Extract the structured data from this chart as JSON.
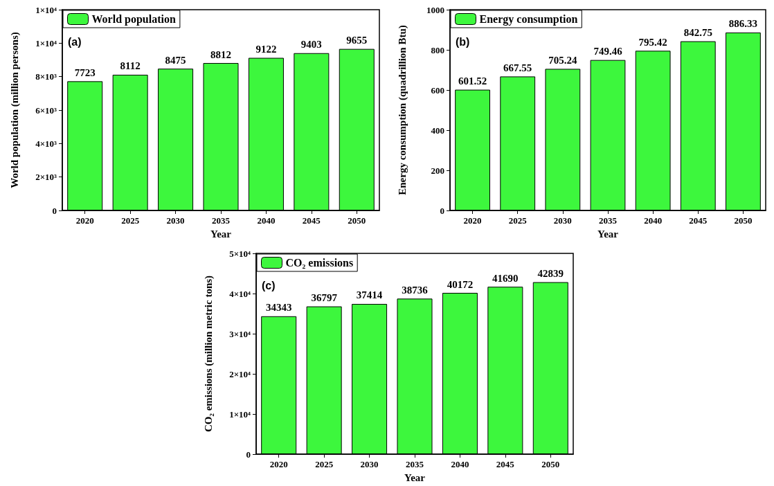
{
  "chart_data": [
    {
      "type": "bar",
      "categories": [
        "2020",
        "2025",
        "2030",
        "2035",
        "2040",
        "2045",
        "2050"
      ],
      "xlabel": "Year",
      "ylabel": "World population (million persons)",
      "annotations": [
        "(a)"
      ],
      "series": [
        {
          "name": "World population",
          "color": "#3df73d",
          "values": [
            7723,
            8112,
            8475,
            8812,
            9122,
            9403,
            9655
          ]
        }
      ],
      "ylim": [
        0,
        12000
      ],
      "yticks": [
        0,
        {
          "value": 2000,
          "label": "2×10³"
        },
        {
          "value": 4000,
          "label": "4×10³"
        },
        {
          "value": 6000,
          "label": "6×10³"
        },
        {
          "value": 8000,
          "label": "8×10³"
        },
        {
          "value": 10000,
          "label": "1×10⁴"
        },
        {
          "value": 12000,
          "label": "1×10⁴"
        }
      ],
      "data_labels": true,
      "legend": "top left",
      "grid": false
    },
    {
      "type": "bar",
      "categories": [
        "2020",
        "2025",
        "2030",
        "2035",
        "2040",
        "2045",
        "2050"
      ],
      "xlabel": "Year",
      "ylabel": "Energy consumption (quadrillion Btu)",
      "annotations": [
        "(b)"
      ],
      "series": [
        {
          "name": "Energy consumption",
          "color": "#3df73d",
          "values": [
            601.52,
            667.55,
            705.24,
            749.46,
            795.42,
            842.75,
            886.33
          ]
        }
      ],
      "ylim": [
        0,
        1000
      ],
      "yticks": [
        0,
        200,
        400,
        600,
        800,
        1000
      ],
      "data_labels": true,
      "legend": "top left",
      "grid": false
    },
    {
      "type": "bar",
      "categories": [
        "2020",
        "2025",
        "2030",
        "2035",
        "2040",
        "2045",
        "2050"
      ],
      "xlabel": "Year",
      "ylabel": "CO₂ emissions (million metric tons)",
      "annotations": [
        "(c)"
      ],
      "series": [
        {
          "name": "CO₂ emissions",
          "color": "#3df73d",
          "values": [
            34343,
            36797,
            37414,
            38736,
            40172,
            41690,
            42839
          ]
        }
      ],
      "ylim": [
        0,
        50000
      ],
      "yticks": [
        0,
        {
          "value": 10000,
          "label": "1×10⁴"
        },
        {
          "value": 20000,
          "label": "2×10⁴"
        },
        {
          "value": 30000,
          "label": "3×10⁴"
        },
        {
          "value": 40000,
          "label": "4×10⁴"
        },
        {
          "value": 50000,
          "label": "5×10⁴"
        }
      ],
      "data_labels": true,
      "legend": "top left",
      "grid": false
    }
  ]
}
